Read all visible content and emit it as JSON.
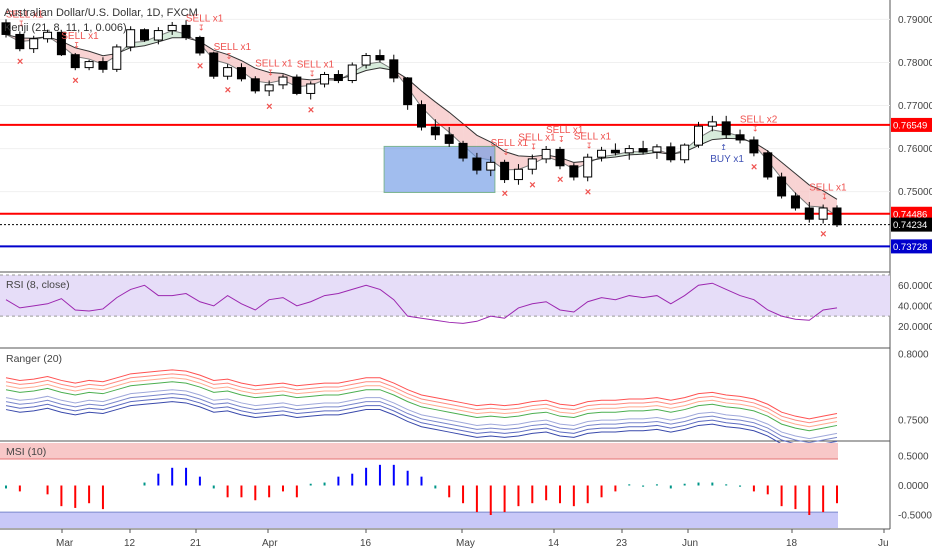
{
  "header": {
    "title": "Australian Dollar/U.S. Dollar, 1D, FXCM",
    "indicator": "Kenji (21, 8, 11, 1, 0.006)"
  },
  "colors": {
    "bull": "#ffffff",
    "bear": "#000000",
    "resistance": "#ff0000",
    "support": "#0000cc",
    "sell": "#ef5350",
    "buy": "#3f51b5",
    "rsi_band": "#e6ddf8",
    "rsi_line": "#9c27b0",
    "msi_pos": "#0000ff",
    "msi_neg": "#ff0000",
    "msi_top_band": "#f8c8c8",
    "msi_bot_band": "#c8c8f8",
    "cloud_red": "#f6c8c8",
    "cloud_green": "#cde6d2",
    "box": "#6f9be6"
  },
  "price_axis": {
    "ticks": [
      "0.79000",
      "0.78000",
      "0.77000",
      "0.76000",
      "0.75000"
    ]
  },
  "levels": [
    {
      "label": "0.76549",
      "value": 0.76549,
      "color": "#ff0000"
    },
    {
      "label": "0.74486",
      "value": 0.74486,
      "color": "#ff0000"
    },
    {
      "label": "0.74234",
      "value": 0.74234,
      "color": "#000000"
    },
    {
      "label": "0.73728",
      "value": 0.73728,
      "color": "#0000cc"
    }
  ],
  "signals": [
    {
      "text": "SELL x1",
      "type": "sell",
      "i": 1
    },
    {
      "text": "SELL x1",
      "type": "sell",
      "i": 5
    },
    {
      "text": "SELL x1",
      "type": "sell",
      "i": 14
    },
    {
      "text": "SELL x1",
      "type": "sell",
      "i": 16
    },
    {
      "text": "SELL x1",
      "type": "sell",
      "i": 19
    },
    {
      "text": "SELL x1",
      "type": "sell",
      "i": 22
    },
    {
      "text": "SELL x1",
      "type": "sell",
      "i": 36
    },
    {
      "text": "SELL x1",
      "type": "sell",
      "i": 38
    },
    {
      "text": "SELL x1",
      "type": "sell",
      "i": 40
    },
    {
      "text": "SELL x1",
      "type": "sell",
      "i": 42
    },
    {
      "text": "SELL x2",
      "type": "sell",
      "i": 54
    },
    {
      "text": "BUY x1",
      "type": "buy",
      "i": 52
    },
    {
      "text": "SELL x1",
      "type": "sell",
      "i": 59
    }
  ],
  "rsi": {
    "label": "RSI (8, close)",
    "ticks": [
      "60.0000",
      "40.0000",
      "20.0000"
    ]
  },
  "ranger": {
    "label": "Ranger (20)",
    "ticks": [
      "0.8000",
      "0.7500"
    ]
  },
  "msi": {
    "label": "MSI (10)",
    "ticks": [
      "0.5000",
      "0.0000",
      "-0.5000"
    ]
  },
  "x_axis": {
    "labels": [
      "Mar",
      "12",
      "21",
      "Apr",
      "16",
      "May",
      "14",
      "23",
      "Jun",
      "18",
      "Ju"
    ]
  },
  "chart_data": {
    "type": "candlestick",
    "title": "Australian Dollar/U.S. Dollar, 1D, FXCM",
    "ylim": [
      0.7318,
      0.7945
    ],
    "candles": [
      [
        0.7892,
        0.79,
        0.7858,
        0.7865
      ],
      [
        0.7865,
        0.7872,
        0.7826,
        0.7832
      ],
      [
        0.7832,
        0.7862,
        0.7822,
        0.7855
      ],
      [
        0.7855,
        0.7876,
        0.7846,
        0.787
      ],
      [
        0.787,
        0.7875,
        0.7815,
        0.7818
      ],
      [
        0.7818,
        0.7822,
        0.7782,
        0.7788
      ],
      [
        0.7788,
        0.7806,
        0.7782,
        0.7802
      ],
      [
        0.7802,
        0.7812,
        0.7776,
        0.7784
      ],
      [
        0.7784,
        0.7842,
        0.7778,
        0.7836
      ],
      [
        0.7836,
        0.7884,
        0.7826,
        0.7876
      ],
      [
        0.7876,
        0.7879,
        0.7848,
        0.7852
      ],
      [
        0.7852,
        0.7882,
        0.7842,
        0.7874
      ],
      [
        0.7874,
        0.7894,
        0.7864,
        0.7886
      ],
      [
        0.7886,
        0.7898,
        0.7852,
        0.7858
      ],
      [
        0.7858,
        0.7862,
        0.7816,
        0.7822
      ],
      [
        0.7822,
        0.7825,
        0.7762,
        0.7768
      ],
      [
        0.7768,
        0.7796,
        0.776,
        0.7788
      ],
      [
        0.7788,
        0.7798,
        0.7756,
        0.7762
      ],
      [
        0.7762,
        0.7768,
        0.7728,
        0.7734
      ],
      [
        0.7734,
        0.7758,
        0.7722,
        0.7748
      ],
      [
        0.7748,
        0.7772,
        0.7738,
        0.7766
      ],
      [
        0.7766,
        0.7772,
        0.7724,
        0.7728
      ],
      [
        0.7728,
        0.7756,
        0.7714,
        0.775
      ],
      [
        0.775,
        0.7778,
        0.7742,
        0.7772
      ],
      [
        0.7772,
        0.7782,
        0.7752,
        0.7758
      ],
      [
        0.7758,
        0.78,
        0.7752,
        0.7794
      ],
      [
        0.7794,
        0.7822,
        0.7786,
        0.7816
      ],
      [
        0.7816,
        0.783,
        0.78,
        0.7806
      ],
      [
        0.7806,
        0.7818,
        0.7754,
        0.7764
      ],
      [
        0.7764,
        0.7766,
        0.769,
        0.7702
      ],
      [
        0.7702,
        0.7712,
        0.7642,
        0.765
      ],
      [
        0.765,
        0.7668,
        0.762,
        0.7632
      ],
      [
        0.7632,
        0.765,
        0.7604,
        0.7612
      ],
      [
        0.7612,
        0.7618,
        0.757,
        0.7578
      ],
      [
        0.7578,
        0.759,
        0.754,
        0.755
      ],
      [
        0.755,
        0.7582,
        0.7536,
        0.7568
      ],
      [
        0.7568,
        0.7574,
        0.752,
        0.7528
      ],
      [
        0.7528,
        0.7564,
        0.7516,
        0.7552
      ],
      [
        0.7552,
        0.7586,
        0.754,
        0.7576
      ],
      [
        0.7576,
        0.7606,
        0.7566,
        0.7598
      ],
      [
        0.7598,
        0.7604,
        0.7552,
        0.756
      ],
      [
        0.756,
        0.7566,
        0.7526,
        0.7534
      ],
      [
        0.7534,
        0.7588,
        0.7524,
        0.758
      ],
      [
        0.758,
        0.7604,
        0.757,
        0.7596
      ],
      [
        0.7596,
        0.7612,
        0.7584,
        0.759
      ],
      [
        0.759,
        0.7608,
        0.7574,
        0.76
      ],
      [
        0.76,
        0.7618,
        0.7586,
        0.7592
      ],
      [
        0.7592,
        0.761,
        0.7576,
        0.7604
      ],
      [
        0.7604,
        0.7614,
        0.7568,
        0.7574
      ],
      [
        0.7574,
        0.7612,
        0.7566,
        0.7608
      ],
      [
        0.7608,
        0.7662,
        0.7602,
        0.7652
      ],
      [
        0.7652,
        0.7676,
        0.764,
        0.7662
      ],
      [
        0.7662,
        0.7676,
        0.7624,
        0.7632
      ],
      [
        0.7632,
        0.7644,
        0.7612,
        0.762
      ],
      [
        0.762,
        0.7628,
        0.7582,
        0.759
      ],
      [
        0.759,
        0.7596,
        0.7528,
        0.7534
      ],
      [
        0.7534,
        0.7544,
        0.7484,
        0.749
      ],
      [
        0.749,
        0.7498,
        0.7456,
        0.7462
      ],
      [
        0.7462,
        0.7476,
        0.7428,
        0.7436
      ],
      [
        0.7436,
        0.747,
        0.7426,
        0.7462
      ],
      [
        0.7462,
        0.7468,
        0.7418,
        0.7423
      ]
    ],
    "rsi": [
      46,
      38,
      40,
      42,
      47,
      36,
      35,
      37,
      48,
      56,
      60,
      50,
      50,
      52,
      44,
      40,
      50,
      42,
      36,
      46,
      48,
      40,
      44,
      50,
      52,
      56,
      60,
      56,
      46,
      30,
      28,
      26,
      24,
      23,
      25,
      30,
      28,
      38,
      42,
      44,
      36,
      34,
      44,
      48,
      46,
      50,
      48,
      50,
      42,
      50,
      60,
      62,
      56,
      50,
      46,
      36,
      30,
      27,
      26,
      36,
      38
    ],
    "ranger_mid": [
      0.77,
      0.768,
      0.769,
      0.771,
      0.768,
      0.766,
      0.768,
      0.767,
      0.77,
      0.773,
      0.774,
      0.775,
      0.776,
      0.775,
      0.772,
      0.768,
      0.769,
      0.766,
      0.764,
      0.765,
      0.766,
      0.764,
      0.765,
      0.766,
      0.766,
      0.768,
      0.77,
      0.77,
      0.766,
      0.761,
      0.757,
      0.755,
      0.753,
      0.751,
      0.749,
      0.75,
      0.749,
      0.75,
      0.752,
      0.753,
      0.75,
      0.749,
      0.752,
      0.753,
      0.753,
      0.754,
      0.754,
      0.755,
      0.753,
      0.755,
      0.758,
      0.759,
      0.757,
      0.756,
      0.754,
      0.75,
      0.744,
      0.741,
      0.739,
      0.741,
      0.743
    ],
    "msi": [
      -0.05,
      -0.1,
      0,
      -0.15,
      -0.35,
      -0.38,
      -0.3,
      -0.4,
      0,
      0,
      0.05,
      0.2,
      0.3,
      0.3,
      0.15,
      -0.05,
      -0.2,
      -0.2,
      -0.25,
      -0.2,
      -0.1,
      -0.2,
      0.03,
      0.05,
      0.15,
      0.2,
      0.3,
      0.35,
      0.35,
      0.25,
      0.15,
      -0.05,
      -0.2,
      -0.3,
      -0.45,
      -0.5,
      -0.45,
      -0.35,
      -0.3,
      -0.25,
      -0.3,
      -0.35,
      -0.3,
      -0.2,
      -0.1,
      0.02,
      -0.02,
      0.02,
      -0.05,
      0.03,
      0.05,
      0.05,
      0.02,
      -0.02,
      -0.1,
      -0.15,
      -0.35,
      -0.4,
      -0.5,
      -0.45,
      -0.3
    ]
  }
}
